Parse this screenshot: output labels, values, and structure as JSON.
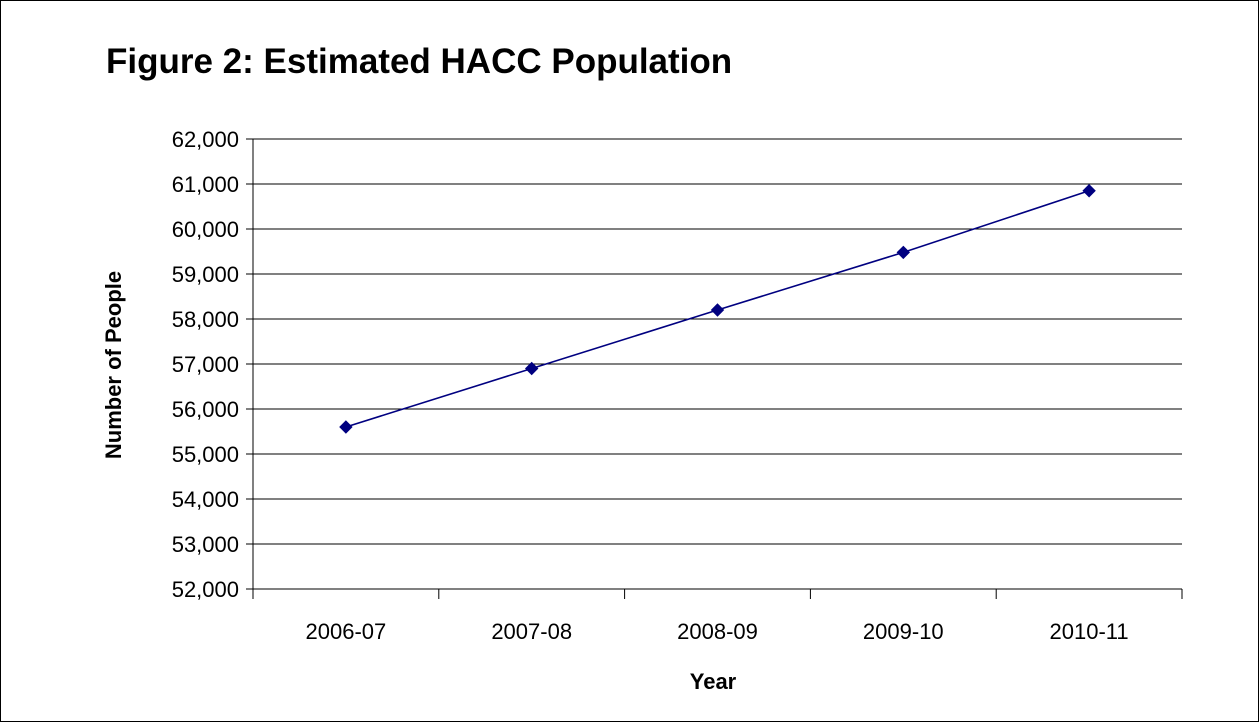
{
  "chart_data": {
    "type": "line",
    "title": "Figure 2: Estimated HACC Population",
    "xlabel": "Year",
    "ylabel": "Number of People",
    "categories": [
      "2006-07",
      "2007-08",
      "2008-09",
      "2009-10",
      "2010-11"
    ],
    "series": [
      {
        "values": [
          55600,
          56900,
          58200,
          59480,
          60850
        ]
      }
    ],
    "ylim": [
      52000,
      62000
    ],
    "y_ticks": [
      "52,000",
      "53,000",
      "54,000",
      "55,000",
      "56,000",
      "57,000",
      "58,000",
      "59,000",
      "60,000",
      "61,000",
      "62,000"
    ],
    "grid": true,
    "legend": "none",
    "colors": {
      "line": "#000080",
      "marker": "#000080",
      "grid": "#000000"
    }
  }
}
